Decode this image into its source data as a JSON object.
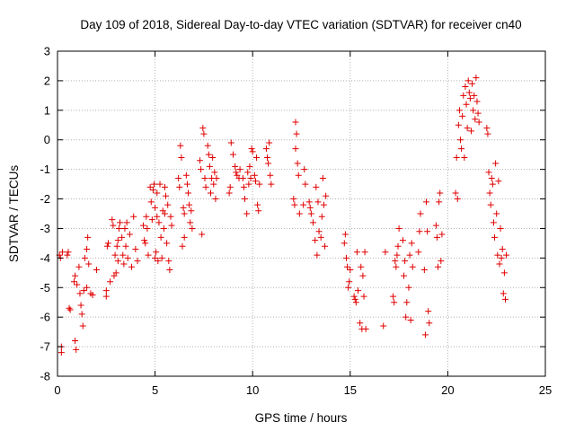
{
  "chart_data": {
    "type": "scatter",
    "title": "Day 109 of 2018, Sidereal Day-to-day VTEC variation (SDTVAR) for receiver cn40",
    "xlabel": "GPS time / hours",
    "ylabel": "SDTVAR / TECUs",
    "xlim": [
      0,
      25
    ],
    "ylim": [
      -8,
      3
    ],
    "x_ticks": [
      0,
      5,
      10,
      15,
      20,
      25
    ],
    "y_ticks": [
      -8,
      -7,
      -6,
      -5,
      -4,
      -3,
      -2,
      -1,
      0,
      1,
      2,
      3
    ],
    "grid": true,
    "marker": "plus",
    "color": "#e00000",
    "series": [
      {
        "name": "SDTVAR",
        "points": [
          [
            0.1,
            -3.9
          ],
          [
            0.15,
            -4.0
          ],
          [
            0.2,
            -7.0
          ],
          [
            0.2,
            -7.2
          ],
          [
            0.25,
            -3.8
          ],
          [
            0.5,
            -3.9
          ],
          [
            0.55,
            -3.8
          ],
          [
            0.6,
            -5.7
          ],
          [
            0.65,
            -5.75
          ],
          [
            0.85,
            -4.8
          ],
          [
            0.9,
            -4.6
          ],
          [
            0.9,
            -6.8
          ],
          [
            0.95,
            -7.1
          ],
          [
            1.0,
            -4.9
          ],
          [
            1.1,
            -4.3
          ],
          [
            1.15,
            -5.2
          ],
          [
            1.2,
            -5.6
          ],
          [
            1.25,
            -5.9
          ],
          [
            1.3,
            -6.3
          ],
          [
            1.35,
            -5.1
          ],
          [
            1.4,
            -4.0
          ],
          [
            1.5,
            -3.7
          ],
          [
            1.5,
            -5.0
          ],
          [
            1.55,
            -3.3
          ],
          [
            1.6,
            -4.2
          ],
          [
            1.7,
            -5.2
          ],
          [
            1.8,
            -5.25
          ],
          [
            2.0,
            -4.4
          ],
          [
            2.5,
            -5.3
          ],
          [
            2.5,
            -5.1
          ],
          [
            2.55,
            -3.6
          ],
          [
            2.6,
            -3.5
          ],
          [
            2.7,
            -4.8
          ],
          [
            2.8,
            -2.7
          ],
          [
            2.85,
            -2.9
          ],
          [
            2.9,
            -4.6
          ],
          [
            2.95,
            -3.9
          ],
          [
            3.0,
            -4.5
          ],
          [
            3.05,
            -3.6
          ],
          [
            3.1,
            -3.4
          ],
          [
            3.1,
            -4.1
          ],
          [
            3.15,
            -3.0
          ],
          [
            3.2,
            -2.8
          ],
          [
            3.3,
            -3.3
          ],
          [
            3.35,
            -3.9
          ],
          [
            3.4,
            -4.2
          ],
          [
            3.45,
            -3.0
          ],
          [
            3.5,
            -3.6
          ],
          [
            3.55,
            -2.8
          ],
          [
            3.6,
            -4.0
          ],
          [
            3.7,
            -3.2
          ],
          [
            3.8,
            -4.3
          ],
          [
            3.9,
            -2.6
          ],
          [
            4.0,
            -3.7
          ],
          [
            4.1,
            -4.1
          ],
          [
            4.4,
            -2.9
          ],
          [
            4.45,
            -3.4
          ],
          [
            4.5,
            -3.5
          ],
          [
            4.55,
            -2.6
          ],
          [
            4.6,
            -3.0
          ],
          [
            4.65,
            -3.9
          ],
          [
            4.75,
            -1.6
          ],
          [
            4.8,
            -2.1
          ],
          [
            4.85,
            -2.7
          ],
          [
            4.9,
            -1.7
          ],
          [
            4.95,
            -1.5
          ],
          [
            5.0,
            -2.3
          ],
          [
            5.0,
            -4.0
          ],
          [
            5.05,
            -3.8
          ],
          [
            5.1,
            -1.8
          ],
          [
            5.1,
            -2.6
          ],
          [
            5.15,
            -4.1
          ],
          [
            5.2,
            -2.8
          ],
          [
            5.25,
            -1.5
          ],
          [
            5.3,
            -3.3
          ],
          [
            5.35,
            -4.0
          ],
          [
            5.4,
            -2.4
          ],
          [
            5.45,
            -3.0
          ],
          [
            5.5,
            -2.5
          ],
          [
            5.5,
            -1.6
          ],
          [
            5.55,
            -1.9
          ],
          [
            5.6,
            -3.5
          ],
          [
            5.65,
            -2.2
          ],
          [
            5.7,
            -4.1
          ],
          [
            5.75,
            -4.4
          ],
          [
            5.8,
            -2.6
          ],
          [
            5.85,
            -2.9
          ],
          [
            6.2,
            -1.3
          ],
          [
            6.25,
            -1.6
          ],
          [
            6.3,
            -0.2
          ],
          [
            6.35,
            -0.6
          ],
          [
            6.4,
            -3.6
          ],
          [
            6.45,
            -2.3
          ],
          [
            6.5,
            -3.3
          ],
          [
            6.5,
            -2.5
          ],
          [
            6.6,
            -1.2
          ],
          [
            6.65,
            -1.5
          ],
          [
            6.7,
            -1.8
          ],
          [
            6.75,
            -2.2
          ],
          [
            6.8,
            -2.8
          ],
          [
            6.85,
            -2.4
          ],
          [
            6.9,
            -3.0
          ],
          [
            7.3,
            -0.7
          ],
          [
            7.35,
            -1.0
          ],
          [
            7.4,
            -3.2
          ],
          [
            7.45,
            0.4
          ],
          [
            7.5,
            0.2
          ],
          [
            7.55,
            -1.3
          ],
          [
            7.6,
            -1.6
          ],
          [
            7.7,
            -0.2
          ],
          [
            7.75,
            -0.5
          ],
          [
            7.8,
            -0.9
          ],
          [
            7.85,
            -1.8
          ],
          [
            7.9,
            -1.3
          ],
          [
            7.95,
            -0.6
          ],
          [
            8.0,
            -1.5
          ],
          [
            8.05,
            -1.1
          ],
          [
            8.1,
            -2.0
          ],
          [
            8.15,
            -1.3
          ],
          [
            8.8,
            -1.8
          ],
          [
            8.85,
            -1.6
          ],
          [
            8.9,
            -0.1
          ],
          [
            9.0,
            -0.5
          ],
          [
            9.1,
            -0.9
          ],
          [
            9.15,
            -1.1
          ],
          [
            9.2,
            -1.2
          ],
          [
            9.3,
            -1.3
          ],
          [
            9.35,
            -1.0
          ],
          [
            9.5,
            -1.3
          ],
          [
            9.55,
            -1.6
          ],
          [
            9.6,
            -2.0
          ],
          [
            9.7,
            -2.5
          ],
          [
            9.75,
            -1.1
          ],
          [
            9.8,
            -1.5
          ],
          [
            9.85,
            -0.9
          ],
          [
            9.9,
            -1.3
          ],
          [
            9.95,
            -0.3
          ],
          [
            10.0,
            -0.4
          ],
          [
            10.1,
            -1.2
          ],
          [
            10.15,
            -1.4
          ],
          [
            10.2,
            -0.6
          ],
          [
            10.25,
            -2.2
          ],
          [
            10.3,
            -2.4
          ],
          [
            10.35,
            -1.5
          ],
          [
            10.7,
            -0.3
          ],
          [
            10.75,
            -0.6
          ],
          [
            10.8,
            -0.8
          ],
          [
            10.85,
            -0.1
          ],
          [
            10.9,
            -1.2
          ],
          [
            10.95,
            -1.5
          ],
          [
            12.1,
            -2.0
          ],
          [
            12.15,
            -2.2
          ],
          [
            12.2,
            0.6
          ],
          [
            12.2,
            -0.3
          ],
          [
            12.25,
            0.2
          ],
          [
            12.3,
            -0.8
          ],
          [
            12.35,
            -1.2
          ],
          [
            12.4,
            -2.5
          ],
          [
            12.6,
            -2.2
          ],
          [
            12.65,
            -1.0
          ],
          [
            12.7,
            -1.5
          ],
          [
            12.9,
            -2.1
          ],
          [
            12.95,
            -2.3
          ],
          [
            13.0,
            -2.5
          ],
          [
            13.1,
            -2.8
          ],
          [
            13.2,
            -3.4
          ],
          [
            13.25,
            -1.6
          ],
          [
            13.3,
            -3.9
          ],
          [
            13.35,
            -2.1
          ],
          [
            13.4,
            -3.1
          ],
          [
            13.5,
            -3.3
          ],
          [
            13.55,
            -2.6
          ],
          [
            13.6,
            -1.3
          ],
          [
            13.65,
            -2.2
          ],
          [
            13.7,
            -3.6
          ],
          [
            13.75,
            -1.9
          ],
          [
            14.7,
            -3.5
          ],
          [
            14.75,
            -3.2
          ],
          [
            14.8,
            -4.0
          ],
          [
            14.85,
            -4.3
          ],
          [
            14.9,
            -5.0
          ],
          [
            14.95,
            -4.8
          ],
          [
            15.0,
            -4.4
          ],
          [
            15.2,
            -5.3
          ],
          [
            15.25,
            -5.4
          ],
          [
            15.3,
            -5.5
          ],
          [
            15.35,
            -3.8
          ],
          [
            15.4,
            -5.1
          ],
          [
            15.5,
            -6.2
          ],
          [
            15.55,
            -4.3
          ],
          [
            15.6,
            -6.4
          ],
          [
            15.65,
            -4.6
          ],
          [
            15.7,
            -5.3
          ],
          [
            15.75,
            -3.8
          ],
          [
            15.8,
            -6.4
          ],
          [
            16.7,
            -6.3
          ],
          [
            16.8,
            -3.8
          ],
          [
            17.2,
            -5.3
          ],
          [
            17.25,
            -5.5
          ],
          [
            17.3,
            -4.1
          ],
          [
            17.35,
            -4.3
          ],
          [
            17.4,
            -3.9
          ],
          [
            17.45,
            -3.6
          ],
          [
            17.5,
            -3.0
          ],
          [
            17.7,
            -3.4
          ],
          [
            17.75,
            -4.6
          ],
          [
            17.8,
            -4.1
          ],
          [
            17.85,
            -6.0
          ],
          [
            17.9,
            -5.5
          ],
          [
            18.0,
            -5.0
          ],
          [
            18.05,
            -3.9
          ],
          [
            18.1,
            -6.1
          ],
          [
            18.15,
            -3.5
          ],
          [
            18.2,
            -4.3
          ],
          [
            18.5,
            -3.8
          ],
          [
            18.55,
            -3.1
          ],
          [
            18.6,
            -2.5
          ],
          [
            18.8,
            -4.4
          ],
          [
            18.85,
            -6.6
          ],
          [
            18.9,
            -2.1
          ],
          [
            18.95,
            -3.1
          ],
          [
            19.0,
            -5.8
          ],
          [
            19.05,
            -6.2
          ],
          [
            19.4,
            -2.9
          ],
          [
            19.45,
            -3.3
          ],
          [
            19.5,
            -4.3
          ],
          [
            19.55,
            -2.1
          ],
          [
            19.6,
            -1.8
          ],
          [
            19.65,
            -4.1
          ],
          [
            19.7,
            -3.2
          ],
          [
            20.4,
            -1.8
          ],
          [
            20.45,
            -0.6
          ],
          [
            20.5,
            -2.0
          ],
          [
            20.55,
            0.5
          ],
          [
            20.6,
            1.0
          ],
          [
            20.65,
            0.0
          ],
          [
            20.7,
            -0.3
          ],
          [
            20.75,
            0.8
          ],
          [
            20.8,
            1.5
          ],
          [
            20.85,
            -0.6
          ],
          [
            20.9,
            1.8
          ],
          [
            20.95,
            1.2
          ],
          [
            21.0,
            0.4
          ],
          [
            21.05,
            2.0
          ],
          [
            21.1,
            1.6
          ],
          [
            21.15,
            1.4
          ],
          [
            21.2,
            0.3
          ],
          [
            21.25,
            1.9
          ],
          [
            21.3,
            1.0
          ],
          [
            21.35,
            1.5
          ],
          [
            21.4,
            0.7
          ],
          [
            21.45,
            2.1
          ],
          [
            21.5,
            1.3
          ],
          [
            21.55,
            0.9
          ],
          [
            21.6,
            0.6
          ],
          [
            22.0,
            0.4
          ],
          [
            22.05,
            0.2
          ],
          [
            22.1,
            -1.1
          ],
          [
            22.15,
            -1.8
          ],
          [
            22.2,
            -2.2
          ],
          [
            22.25,
            -1.3
          ],
          [
            22.3,
            -1.5
          ],
          [
            22.35,
            -2.8
          ],
          [
            22.4,
            -3.3
          ],
          [
            22.45,
            -0.8
          ],
          [
            22.5,
            -2.5
          ],
          [
            22.55,
            -3.9
          ],
          [
            22.6,
            -1.4
          ],
          [
            22.65,
            -4.2
          ],
          [
            22.7,
            -3.0
          ],
          [
            22.75,
            -4.0
          ],
          [
            22.8,
            -3.7
          ],
          [
            22.85,
            -5.2
          ],
          [
            22.9,
            -4.5
          ],
          [
            22.95,
            -5.4
          ],
          [
            23.0,
            -3.9
          ]
        ]
      }
    ]
  }
}
